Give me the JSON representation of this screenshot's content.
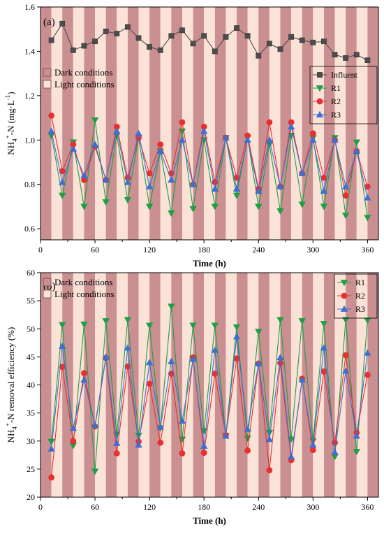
{
  "colors": {
    "dark_band": "#c98f91",
    "light_band": "#fbe2d6",
    "influent": "#4d4d4d",
    "R1": "#1f9e45",
    "R2": "#e83030",
    "R3": "#3b6fd1"
  },
  "chart_data": [
    {
      "panel_label": "(a)",
      "type": "line",
      "xlabel": "Time (h)",
      "ylabel_parts": [
        "NH",
        "4",
        "+",
        "-N (mg·L",
        "-1",
        ")"
      ],
      "xlim": [
        0,
        372
      ],
      "ylim": [
        0.55,
        1.6
      ],
      "xticks": [
        0,
        60,
        120,
        180,
        240,
        300,
        360
      ],
      "yticks": [
        0.6,
        0.8,
        1.0,
        1.2,
        1.4,
        1.6
      ],
      "ytick_labels": [
        "0.6",
        "0.8",
        "1.0",
        "1.2",
        "1.4",
        "1.6"
      ],
      "grid": false,
      "legend_position": "right",
      "band_legend": [
        "Dark conditions",
        "Light conditions"
      ],
      "bands": {
        "period": 24,
        "dark_first": true
      },
      "x": [
        12,
        24,
        36,
        48,
        60,
        72,
        84,
        96,
        108,
        120,
        132,
        144,
        156,
        168,
        180,
        192,
        204,
        216,
        228,
        240,
        252,
        264,
        276,
        288,
        300,
        312,
        324,
        336,
        348,
        360
      ],
      "series": [
        {
          "name": "Influent",
          "marker": "square",
          "color_key": "influent",
          "values": [
            1.45,
            1.525,
            1.405,
            1.425,
            1.445,
            1.49,
            1.48,
            1.51,
            1.46,
            1.42,
            1.405,
            1.47,
            1.495,
            1.435,
            1.47,
            1.4,
            1.465,
            1.505,
            1.47,
            1.38,
            1.435,
            1.41,
            1.465,
            1.45,
            1.44,
            1.445,
            1.385,
            1.37,
            1.385,
            1.36
          ]
        },
        {
          "name": "R1",
          "marker": "tri-down",
          "color_key": "R1",
          "values": [
            1.02,
            0.75,
            0.99,
            0.7,
            1.09,
            0.72,
            1.02,
            0.73,
            1.01,
            0.7,
            0.95,
            0.67,
            1.04,
            0.69,
            1.0,
            0.7,
            1.01,
            0.75,
            1.01,
            0.7,
            0.98,
            0.68,
            1.02,
            0.71,
            1.01,
            0.7,
            1.01,
            0.66,
            0.99,
            0.65
          ]
        },
        {
          "name": "R2",
          "marker": "circle",
          "color_key": "R2",
          "values": [
            1.11,
            0.86,
            0.98,
            0.82,
            0.97,
            0.82,
            1.06,
            0.83,
            1.01,
            0.85,
            0.98,
            0.85,
            1.08,
            0.8,
            1.06,
            0.81,
            1.01,
            0.83,
            1.02,
            0.78,
            1.08,
            0.79,
            1.08,
            0.85,
            1.03,
            0.83,
            1.0,
            0.75,
            0.95,
            0.79
          ]
        },
        {
          "name": "R3",
          "marker": "tri-up",
          "color_key": "R3",
          "values": [
            1.04,
            0.81,
            0.96,
            0.84,
            0.98,
            0.82,
            1.04,
            0.81,
            1.03,
            0.79,
            0.95,
            0.82,
            1.0,
            0.8,
            1.04,
            0.78,
            1.01,
            0.78,
            1.0,
            0.77,
            1.0,
            0.79,
            1.06,
            0.85,
            1.0,
            0.77,
            1.0,
            0.79,
            0.95,
            0.74
          ]
        }
      ]
    },
    {
      "panel_label": "(b)",
      "type": "line",
      "xlabel": "Time (h)",
      "ylabel_parts": [
        "NH",
        "4",
        "+",
        "-N removal efficiency (%)",
        "",
        ""
      ],
      "xlim": [
        0,
        372
      ],
      "ylim": [
        20,
        60
      ],
      "xticks": [
        0,
        60,
        120,
        180,
        240,
        300,
        360
      ],
      "yticks": [
        20,
        25,
        30,
        35,
        40,
        45,
        50,
        55,
        60
      ],
      "ytick_labels": [
        "20",
        "25",
        "30",
        "35",
        "40",
        "45",
        "50",
        "55",
        "60"
      ],
      "grid": false,
      "legend_position": "top-right",
      "band_legend": [
        "Dark conditions",
        "Light conditions"
      ],
      "bands": {
        "period": 24,
        "dark_first": true
      },
      "x": [
        12,
        24,
        36,
        48,
        60,
        72,
        84,
        96,
        108,
        120,
        132,
        144,
        156,
        168,
        180,
        192,
        204,
        216,
        228,
        240,
        252,
        264,
        276,
        288,
        300,
        312,
        324,
        336,
        348,
        360
      ],
      "series": [
        {
          "name": "R1",
          "marker": "tri-down",
          "color_key": "R1",
          "values": [
            29.9,
            50.7,
            29.2,
            50.8,
            24.6,
            51.4,
            31.2,
            51.6,
            31.0,
            50.6,
            32.3,
            54.0,
            30.3,
            50.6,
            31.8,
            50.6,
            31.0,
            50.3,
            30.5,
            49.5,
            31.5,
            51.6,
            30.3,
            51.4,
            30.0,
            50.9,
            27.2,
            51.6,
            28.1,
            51.5
          ]
        },
        {
          "name": "R2",
          "marker": "circle",
          "color_key": "R2",
          "values": [
            23.5,
            43.2,
            30.0,
            42.1,
            32.6,
            44.8,
            27.8,
            43.3,
            29.9,
            40.2,
            29.7,
            42.0,
            27.8,
            44.9,
            27.9,
            42.0,
            31.0,
            44.7,
            28.3,
            43.8,
            24.8,
            43.9,
            26.6,
            41.1,
            28.4,
            42.4,
            29.7,
            45.3,
            31.5,
            41.8
          ]
        },
        {
          "name": "R3",
          "marker": "tri-up",
          "color_key": "R3",
          "values": [
            28.6,
            46.9,
            32.3,
            40.9,
            32.8,
            45.0,
            29.6,
            46.6,
            29.3,
            44.0,
            32.5,
            44.2,
            33.6,
            44.6,
            29.1,
            46.2,
            30.9,
            48.6,
            32.1,
            43.8,
            30.3,
            44.9,
            27.2,
            40.9,
            29.3,
            46.6,
            28.0,
            42.5,
            30.9,
            45.7
          ]
        }
      ]
    }
  ]
}
